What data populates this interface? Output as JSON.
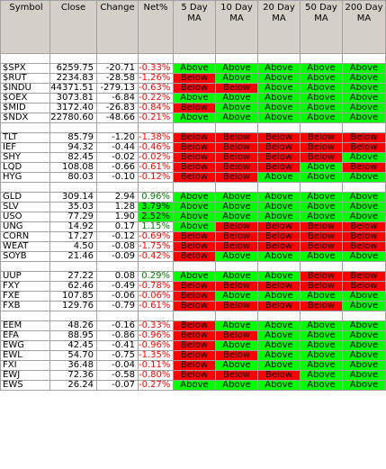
{
  "headers": [
    {
      "key": "symbol",
      "label": "Symbol",
      "align": "left"
    },
    {
      "key": "close",
      "label": "Close",
      "align": "center"
    },
    {
      "key": "change",
      "label": "Change",
      "align": "center"
    },
    {
      "key": "net",
      "label": "Net%",
      "align": "center"
    },
    {
      "key": "ma5",
      "label": "5 Day\nMA",
      "align": "center"
    },
    {
      "key": "ma10",
      "label": "10 Day\nMA",
      "align": "center"
    },
    {
      "key": "ma20",
      "label": "20 Day\nMA",
      "align": "center"
    },
    {
      "key": "ma50",
      "label": "50 Day\nMA",
      "align": "center"
    },
    {
      "key": "ma200",
      "label": "200 Day\nMA",
      "align": "center"
    }
  ],
  "groups": [
    {
      "rows": [
        {
          "symbol": "$SPX",
          "close": "6259.75",
          "change": "-20.71",
          "net": "-0.33%",
          "ma": [
            "Above",
            "Above",
            "Above",
            "Above",
            "Above"
          ]
        },
        {
          "symbol": "$RUT",
          "close": "2234.83",
          "change": "-28.58",
          "net": "-1.26%",
          "ma": [
            "Below",
            "Above",
            "Above",
            "Above",
            "Above"
          ]
        },
        {
          "symbol": "$INDU",
          "close": "44371.51",
          "change": "-279.13",
          "net": "-0.63%",
          "ma": [
            "Below",
            "Below",
            "Above",
            "Above",
            "Above"
          ]
        },
        {
          "symbol": "$OEX",
          "close": "3073.81",
          "change": "-6.84",
          "net": "-0.22%",
          "ma": [
            "Above",
            "Above",
            "Above",
            "Above",
            "Above"
          ]
        },
        {
          "symbol": "$MID",
          "close": "3172.40",
          "change": "-26.83",
          "net": "-0.84%",
          "ma": [
            "Below",
            "Above",
            "Above",
            "Above",
            "Above"
          ]
        },
        {
          "symbol": "$NDX",
          "close": "22780.60",
          "change": "-48.66",
          "net": "-0.21%",
          "ma": [
            "Above",
            "Above",
            "Above",
            "Above",
            "Above"
          ]
        }
      ]
    },
    {
      "rows": [
        {
          "symbol": "TLT",
          "close": "85.79",
          "change": "-1.20",
          "net": "-1.38%",
          "ma": [
            "Below",
            "Below",
            "Below",
            "Below",
            "Below"
          ]
        },
        {
          "symbol": "IEF",
          "close": "94.32",
          "change": "-0.44",
          "net": "-0.46%",
          "ma": [
            "Below",
            "Below",
            "Below",
            "Below",
            "Below"
          ]
        },
        {
          "symbol": "SHY",
          "close": "82.45",
          "change": "-0.02",
          "net": "-0.02%",
          "ma": [
            "Below",
            "Below",
            "Below",
            "Below",
            "Above"
          ]
        },
        {
          "symbol": "LQD",
          "close": "108.08",
          "change": "-0.66",
          "net": "-0.61%",
          "ma": [
            "Below",
            "Below",
            "Below",
            "Above",
            "Below"
          ]
        },
        {
          "symbol": "HYG",
          "close": "80.03",
          "change": "-0.10",
          "net": "-0.12%",
          "ma": [
            "Below",
            "Below",
            "Above",
            "Above",
            "Above"
          ]
        }
      ]
    },
    {
      "rows": [
        {
          "symbol": "GLD",
          "close": "309.14",
          "change": "2.94",
          "net": "0.96%",
          "net_hl": false,
          "ma": [
            "Above",
            "Above",
            "Above",
            "Above",
            "Above"
          ]
        },
        {
          "symbol": "SLV",
          "close": "35.03",
          "change": "1.28",
          "net": "3.79%",
          "net_hl": true,
          "ma": [
            "Above",
            "Above",
            "Above",
            "Above",
            "Above"
          ]
        },
        {
          "symbol": "USO",
          "close": "77.29",
          "change": "1.90",
          "net": "2.52%",
          "net_hl": true,
          "ma": [
            "Above",
            "Above",
            "Above",
            "Above",
            "Above"
          ]
        },
        {
          "symbol": "UNG",
          "close": "14.92",
          "change": "0.17",
          "net": "1.15%",
          "net_hl": false,
          "ma": [
            "Above",
            "Below",
            "Below",
            "Below",
            "Below"
          ]
        },
        {
          "symbol": "CORN",
          "close": "17.27",
          "change": "-0.12",
          "net": "-0.69%",
          "ma": [
            "Below",
            "Below",
            "Below",
            "Below",
            "Below"
          ]
        },
        {
          "symbol": "WEAT",
          "close": "4.50",
          "change": "-0.08",
          "net": "-1.75%",
          "ma": [
            "Below",
            "Below",
            "Below",
            "Below",
            "Below"
          ]
        },
        {
          "symbol": "SOYB",
          "close": "21.46",
          "change": "-0.09",
          "net": "-0.42%",
          "ma": [
            "Below",
            "Above",
            "Above",
            "Above",
            "Above"
          ]
        }
      ]
    },
    {
      "rows": [
        {
          "symbol": "UUP",
          "close": "27.22",
          "change": "0.08",
          "net": "0.29%",
          "net_hl": false,
          "ma": [
            "Above",
            "Above",
            "Above",
            "Below",
            "Below"
          ]
        },
        {
          "symbol": "FXY",
          "close": "62.46",
          "change": "-0.49",
          "net": "-0.78%",
          "ma": [
            "Below",
            "Below",
            "Below",
            "Below",
            "Below"
          ]
        },
        {
          "symbol": "FXE",
          "close": "107.85",
          "change": "-0.06",
          "net": "-0.06%",
          "ma": [
            "Below",
            "Above",
            "Above",
            "Above",
            "Above"
          ]
        },
        {
          "symbol": "FXB",
          "close": "129.76",
          "change": "-0.79",
          "net": "-0.61%",
          "ma": [
            "Below",
            "Below",
            "Below",
            "Below",
            "Above"
          ]
        }
      ]
    },
    {
      "rows": [
        {
          "symbol": "EEM",
          "close": "48.26",
          "change": "-0.16",
          "net": "-0.33%",
          "ma": [
            "Below",
            "Above",
            "Above",
            "Above",
            "Above"
          ]
        },
        {
          "symbol": "EFA",
          "close": "88.95",
          "change": "-0.86",
          "net": "-0.96%",
          "ma": [
            "Below",
            "Below",
            "Above",
            "Above",
            "Above"
          ]
        },
        {
          "symbol": "EWG",
          "close": "42.45",
          "change": "-0.41",
          "net": "-0.96%",
          "ma": [
            "Below",
            "Above",
            "Above",
            "Above",
            "Above"
          ]
        },
        {
          "symbol": "EWL",
          "close": "54.70",
          "change": "-0.75",
          "net": "-1.35%",
          "ma": [
            "Below",
            "Below",
            "Above",
            "Above",
            "Above"
          ]
        },
        {
          "symbol": "FXI",
          "close": "36.48",
          "change": "-0.04",
          "net": "-0.11%",
          "ma": [
            "Below",
            "Above",
            "Above",
            "Above",
            "Above"
          ]
        },
        {
          "symbol": "EWJ",
          "close": "72.36",
          "change": "-0.58",
          "net": "-0.80%",
          "ma": [
            "Below",
            "Below",
            "Below",
            "Above",
            "Above"
          ]
        },
        {
          "symbol": "EWS",
          "close": "26.24",
          "change": "-0.07",
          "net": "-0.27%",
          "ma": [
            "Above",
            "Above",
            "Above",
            "Above",
            "Above"
          ]
        }
      ]
    }
  ],
  "colors": {
    "above": "#00ff00",
    "below": "#ff0000",
    "positive_text": "#008000",
    "negative_text": "#ff0000",
    "header_bg": "#d4d0c8",
    "grid": "#a0a0a0"
  }
}
